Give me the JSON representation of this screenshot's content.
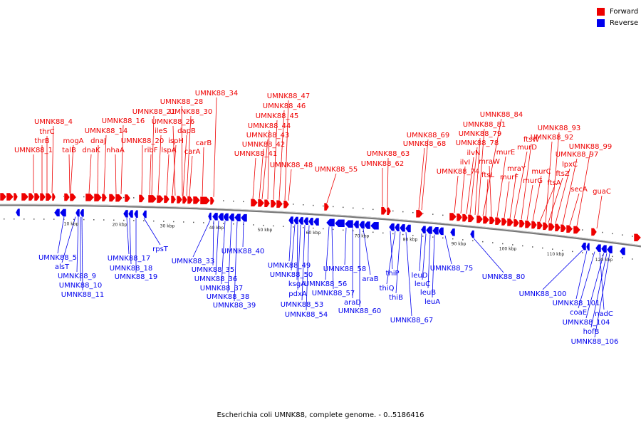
{
  "caption": "Escherichia coli UMNK88, complete genome. - 0..5186416",
  "legend": [
    {
      "label": "Forward",
      "color": "#ee0000"
    },
    {
      "label": "Reverse",
      "color": "#0000ee"
    }
  ],
  "colors": {
    "forward": "#ee0000",
    "reverse": "#0000ee",
    "backbone": "#777777"
  },
  "scale_unit": "kbp",
  "scale_ticks_kbp": [
    10,
    20,
    30,
    40,
    50,
    60,
    70,
    80,
    90,
    100,
    110,
    120
  ],
  "forward_labels": [
    "UMNK88_1",
    "thrB",
    "thrC",
    "UMNK88_4",
    "mogA",
    "talB",
    "dnaK",
    "dnaJ",
    "UMNK88_14",
    "nhaA",
    "UMNK88_16",
    "UMNK88_20",
    "ribF",
    "UMNK88_21",
    "ileS",
    "lspA",
    "ispH",
    "UMNK88_26",
    "dapB",
    "carA",
    "UMNK88_28",
    "UMNK88_30",
    "carB",
    "UMNK88_34",
    "UMNK88_41",
    "UMNK88_42",
    "UMNK88_43",
    "UMNK88_44",
    "UMNK88_45",
    "UMNK88_46",
    "UMNK88_47",
    "UMNK88_48",
    "UMNK88_55",
    "UMNK88_62",
    "UMNK88_63",
    "UMNK88_68",
    "UMNK88_69",
    "UMNK88_74",
    "ilvI",
    "ilvN",
    "UMNK88_78",
    "UMNK88_79",
    "UMNK88_81",
    "UMNK88_84",
    "ftsL",
    "mraW",
    "murE",
    "murF",
    "mraY",
    "murD",
    "ftsW",
    "murG",
    "murC",
    "ftsA",
    "ftsZ",
    "lpxC",
    "UMNK88_92",
    "UMNK88_93",
    "UMNK88_97",
    "secA",
    "UMNK88_99",
    "guaC"
  ],
  "reverse_labels": [
    "UMNK88_5",
    "alsT",
    "UMNK88_9",
    "UMNK88_10",
    "UMNK88_11",
    "UMNK88_17",
    "UMNK88_18",
    "UMNK88_19",
    "rpsT",
    "UMNK88_33",
    "UMNK88_35",
    "UMNK88_36",
    "UMNK88_37",
    "UMNK88_38",
    "UMNK88_39",
    "UMNK88_40",
    "UMNK88_49",
    "UMNK88_50",
    "ksgA",
    "pdxA",
    "UMNK88_53",
    "UMNK88_54",
    "UMNK88_56",
    "UMNK88_57",
    "UMNK88_58",
    "araD",
    "UMNK88_60",
    "araB",
    "thiP",
    "thiQ",
    "thiB",
    "UMNK88_67",
    "leuD",
    "leuC",
    "leuB",
    "leuA",
    "UMNK88_75",
    "UMNK88_80",
    "UMNK88_100",
    "UMNK88_101",
    "coaE",
    "nadC",
    "UMNK88_104",
    "hofB",
    "UMNK88_106"
  ]
}
